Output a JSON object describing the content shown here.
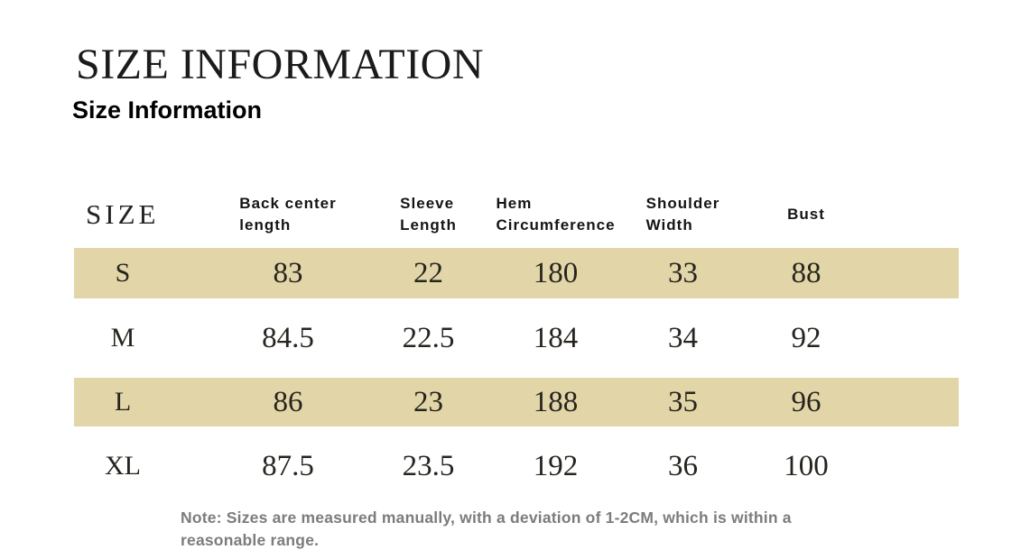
{
  "page": {
    "title": "SIZE INFORMATION",
    "subtitle": "Size Information",
    "note": "Note: Sizes are measured manually, with a deviation of 1-2CM, which is within a reasonable range."
  },
  "table": {
    "highlight_color": "#e2d6a9",
    "columns": [
      {
        "line1": "SIZE"
      },
      {
        "line1": "Back center",
        "line2": "length"
      },
      {
        "line1": "Sleeve",
        "line2": "Length"
      },
      {
        "line1": "Hem",
        "line2": "Circumference"
      },
      {
        "line1": "Shoulder",
        "line2": "Width"
      },
      {
        "line1": "Bust"
      }
    ],
    "rows": [
      {
        "size": "S",
        "values": [
          "83",
          "22",
          "180",
          "33",
          "88"
        ],
        "highlighted": true
      },
      {
        "size": "M",
        "values": [
          "84.5",
          "22.5",
          "184",
          "34",
          "92"
        ],
        "highlighted": false
      },
      {
        "size": "L",
        "values": [
          "86",
          "23",
          "188",
          "35",
          "96"
        ],
        "highlighted": true
      },
      {
        "size": "XL",
        "values": [
          "87.5",
          "23.5",
          "192",
          "36",
          "100"
        ],
        "highlighted": false
      }
    ]
  }
}
